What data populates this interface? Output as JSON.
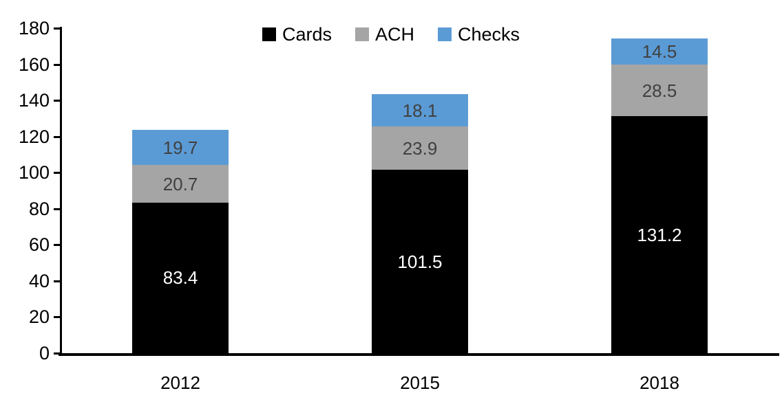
{
  "chart_data": {
    "type": "bar",
    "stacked": true,
    "title": "",
    "xlabel": "",
    "ylabel": "",
    "categories": [
      "2012",
      "2015",
      "2018"
    ],
    "series": [
      {
        "name": "Cards",
        "color": "#000000",
        "label_color": "#ffffff",
        "values": [
          83.4,
          101.5,
          131.2
        ]
      },
      {
        "name": "ACH",
        "color": "#a5a5a5",
        "label_color": "#404040",
        "values": [
          20.7,
          23.9,
          28.5
        ]
      },
      {
        "name": "Checks",
        "color": "#5b9bd5",
        "label_color": "#404040",
        "values": [
          19.7,
          18.1,
          14.5
        ]
      }
    ],
    "totals": [
      123.8,
      143.5,
      174.2
    ],
    "ylim": [
      0,
      180
    ],
    "ytick_step": 20,
    "ytick_labels": [
      "0",
      "20",
      "40",
      "60",
      "80",
      "100",
      "120",
      "140",
      "160",
      "180"
    ],
    "grid": false,
    "legend_position": "top",
    "data_labels": true,
    "axis_color": "#000000",
    "background_color": "#ffffff"
  }
}
